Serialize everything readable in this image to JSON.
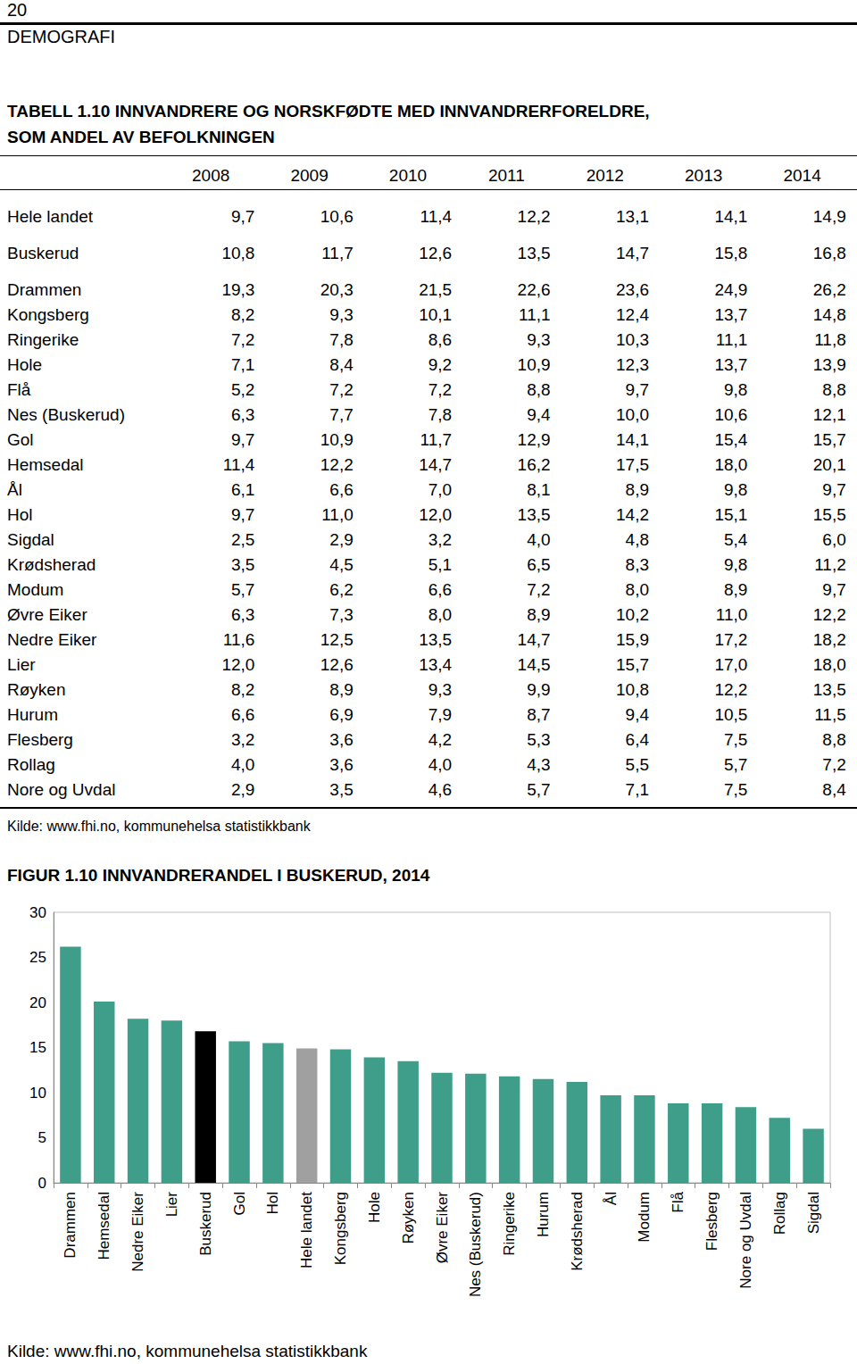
{
  "header": {
    "page": "20",
    "section": "DEMOGRAFI"
  },
  "table": {
    "title": [
      "TABELL 1.10 INNVANDRERE OG NORSKFØDTE MED INNVANDRERFORELDRE,",
      "SOM ANDEL AV BEFOLKNINGEN"
    ],
    "columns": [
      "2008",
      "2009",
      "2010",
      "2011",
      "2012",
      "2013",
      "2014"
    ],
    "rows": [
      [
        "Hele landet",
        "9,7",
        "10,6",
        "11,4",
        "12,2",
        "13,1",
        "14,1",
        "14,9"
      ],
      [
        "Buskerud",
        "10,8",
        "11,7",
        "12,6",
        "13,5",
        "14,7",
        "15,8",
        "16,8"
      ],
      [
        "Drammen",
        "19,3",
        "20,3",
        "21,5",
        "22,6",
        "23,6",
        "24,9",
        "26,2"
      ],
      [
        "Kongsberg",
        "8,2",
        "9,3",
        "10,1",
        "11,1",
        "12,4",
        "13,7",
        "14,8"
      ],
      [
        "Ringerike",
        "7,2",
        "7,8",
        "8,6",
        "9,3",
        "10,3",
        "11,1",
        "11,8"
      ],
      [
        "Hole",
        "7,1",
        "8,4",
        "9,2",
        "10,9",
        "12,3",
        "13,7",
        "13,9"
      ],
      [
        "Flå",
        "5,2",
        "7,2",
        "7,2",
        "8,8",
        "9,7",
        "9,8",
        "8,8"
      ],
      [
        "Nes (Buskerud)",
        "6,3",
        "7,7",
        "7,8",
        "9,4",
        "10,0",
        "10,6",
        "12,1"
      ],
      [
        "Gol",
        "9,7",
        "10,9",
        "11,7",
        "12,9",
        "14,1",
        "15,4",
        "15,7"
      ],
      [
        "Hemsedal",
        "11,4",
        "12,2",
        "14,7",
        "16,2",
        "17,5",
        "18,0",
        "20,1"
      ],
      [
        "Ål",
        "6,1",
        "6,6",
        "7,0",
        "8,1",
        "8,9",
        "9,8",
        "9,7"
      ],
      [
        "Hol",
        "9,7",
        "11,0",
        "12,0",
        "13,5",
        "14,2",
        "15,1",
        "15,5"
      ],
      [
        "Sigdal",
        "2,5",
        "2,9",
        "3,2",
        "4,0",
        "4,8",
        "5,4",
        "6,0"
      ],
      [
        "Krødsherad",
        "3,5",
        "4,5",
        "5,1",
        "6,5",
        "8,3",
        "9,8",
        "11,2"
      ],
      [
        "Modum",
        "5,7",
        "6,2",
        "6,6",
        "7,2",
        "8,0",
        "8,9",
        "9,7"
      ],
      [
        "Øvre Eiker",
        "6,3",
        "7,3",
        "8,0",
        "8,9",
        "10,2",
        "11,0",
        "12,2"
      ],
      [
        "Nedre Eiker",
        "11,6",
        "12,5",
        "13,5",
        "14,7",
        "15,9",
        "17,2",
        "18,2"
      ],
      [
        "Lier",
        "12,0",
        "12,6",
        "13,4",
        "14,5",
        "15,7",
        "17,0",
        "18,0"
      ],
      [
        "Røyken",
        "8,2",
        "8,9",
        "9,3",
        "9,9",
        "10,8",
        "12,2",
        "13,5"
      ],
      [
        "Hurum",
        "6,6",
        "6,9",
        "7,9",
        "8,7",
        "9,4",
        "10,5",
        "11,5"
      ],
      [
        "Flesberg",
        "3,2",
        "3,6",
        "4,2",
        "5,3",
        "6,4",
        "7,5",
        "8,8"
      ],
      [
        "Rollag",
        "4,0",
        "3,6",
        "4,0",
        "4,3",
        "5,5",
        "5,7",
        "7,2"
      ],
      [
        "Nore og Uvdal",
        "2,9",
        "3,5",
        "4,6",
        "5,7",
        "7,1",
        "7,5",
        "8,4"
      ]
    ],
    "source": "Kilde: www.fhi.no, kommunehelsa statistikkbank"
  },
  "chart_data": {
    "type": "bar",
    "title": "FIGUR 1.10 INNVANDRERANDEL I BUSKERUD, 2014",
    "categories": [
      "Drammen",
      "Hemsedal",
      "Nedre Eiker",
      "Lier",
      "Buskerud",
      "Gol",
      "Hol",
      "Hele landet",
      "Kongsberg",
      "Hole",
      "Røyken",
      "Øvre Eiker",
      "Nes (Buskerud)",
      "Ringerike",
      "Hurum",
      "Krødsherad",
      "Ål",
      "Modum",
      "Flå",
      "Flesberg",
      "Nore og Uvdal",
      "Rollag",
      "Sigdal"
    ],
    "values": [
      26.2,
      20.1,
      18.2,
      18.0,
      16.8,
      15.7,
      15.5,
      14.9,
      14.8,
      13.9,
      13.5,
      12.2,
      12.1,
      11.8,
      11.5,
      11.2,
      9.7,
      9.7,
      8.8,
      8.8,
      8.4,
      7.2,
      6.0
    ],
    "colors": [
      "#3E9E89",
      "#3E9E89",
      "#3E9E89",
      "#3E9E89",
      "#000000",
      "#3E9E89",
      "#3E9E89",
      "#A0A0A0",
      "#3E9E89",
      "#3E9E89",
      "#3E9E89",
      "#3E9E89",
      "#3E9E89",
      "#3E9E89",
      "#3E9E89",
      "#3E9E89",
      "#3E9E89",
      "#3E9E89",
      "#3E9E89",
      "#3E9E89",
      "#3E9E89",
      "#3E9E89",
      "#3E9E89"
    ],
    "ylim": [
      0,
      30
    ],
    "yticks": [
      0,
      5,
      10,
      15,
      20,
      25,
      30
    ],
    "grid": false,
    "source": "Kilde: www.fhi.no, kommunehelsa statistikkbank"
  }
}
